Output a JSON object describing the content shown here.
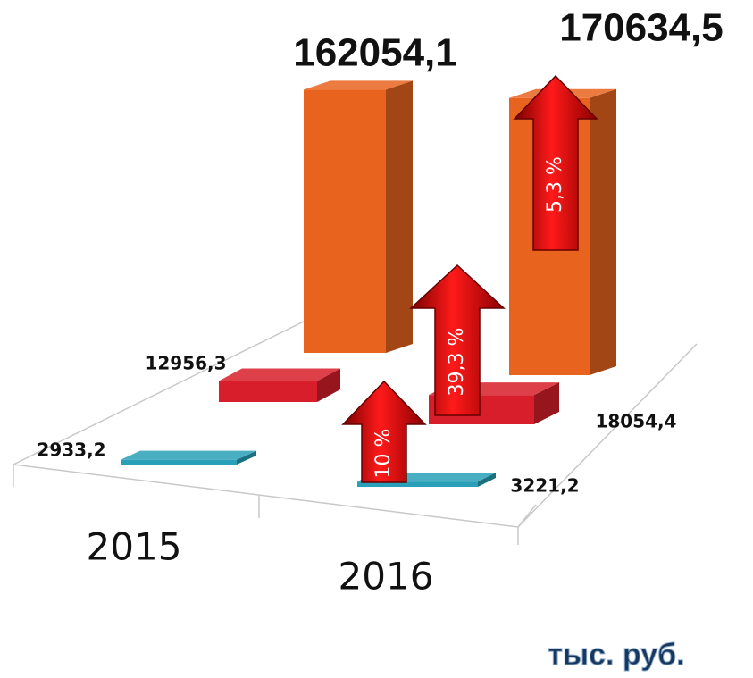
{
  "chart_data": {
    "type": "bar3d",
    "categories": [
      "2015",
      "2016"
    ],
    "series": [
      {
        "color": "#e8641e",
        "values": [
          162054.1,
          170634.5
        ],
        "value_labels": [
          "162054,1",
          "170634,5"
        ]
      },
      {
        "color": "#d81e2a",
        "values": [
          12956.3,
          18054.4
        ],
        "value_labels": [
          "12956,3",
          "18054,4"
        ]
      },
      {
        "color": "#2aa0b8",
        "values": [
          2933.2,
          3221.2
        ],
        "value_labels": [
          "2933,2",
          "3221,2"
        ]
      }
    ],
    "annotations": [
      "5,3 %",
      "39,3 %",
      "10 %"
    ],
    "unit": "тыс. руб."
  }
}
